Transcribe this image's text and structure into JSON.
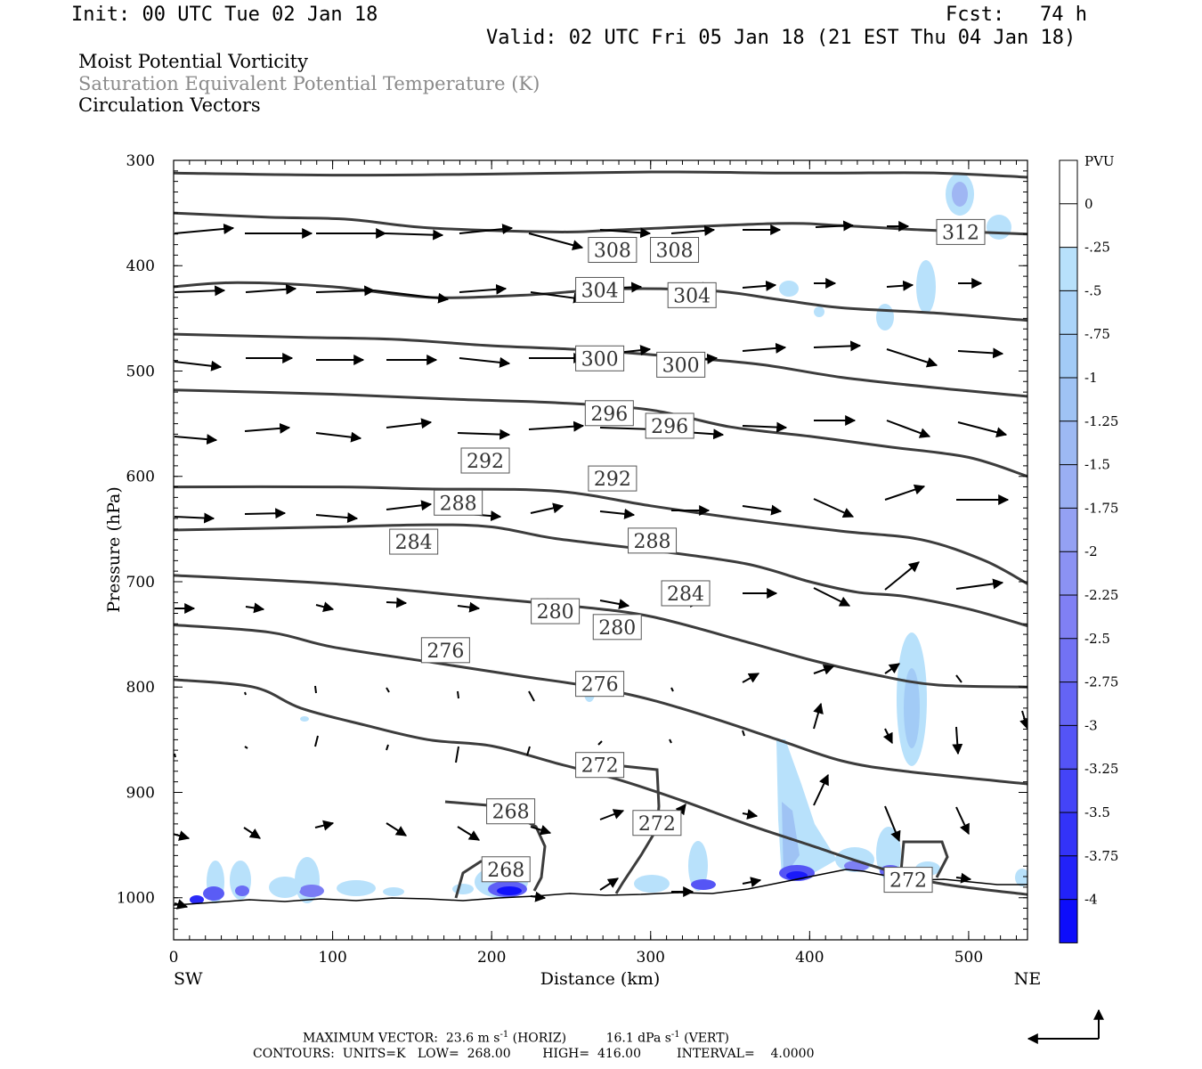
{
  "header": {
    "init": "Init: 00 UTC Tue 02 Jan 18",
    "fcst": "Fcst:   74 h",
    "valid": "Valid: 02 UTC Fri 05 Jan 18 (21 EST Thu 04 Jan 18)"
  },
  "fields": [
    "Moist Potential Vorticity",
    "Saturation Equivalent Potential Temperature (K)",
    "Circulation Vectors"
  ],
  "footer": {
    "max_vector_label": "MAXIMUM VECTOR:",
    "horiz_value": "23.6 m s",
    "horiz_tail": " (HORIZ)",
    "vert_value": "16.1 dPa s",
    "vert_tail": " (VERT)",
    "exp": "-1",
    "contours": "CONTOURS:  UNITS=K   LOW=  268.00        HIGH=  416.00         INTERVAL=    4.0000"
  },
  "chart_data": {
    "type": "contour",
    "x_axis": {
      "label": "Distance (km)",
      "range": [
        0,
        537
      ],
      "ticks": [
        0,
        100,
        200,
        300,
        400,
        500
      ],
      "left_label": "SW",
      "right_label": "NE"
    },
    "y_axis": {
      "label": "Pressure (hPa)",
      "range": [
        300,
        1040
      ],
      "ticks": [
        300,
        400,
        500,
        600,
        700,
        800,
        900,
        1000
      ],
      "reversed": true
    },
    "colorbar": {
      "title": "PVU",
      "ticks": [
        "0",
        "-.25",
        "-.5",
        "-.75",
        "-1",
        "-1.25",
        "-1.5",
        "-1.75",
        "-2",
        "-2.25",
        "-2.5",
        "-2.75",
        "-3",
        "-3.25",
        "-3.5",
        "-3.75",
        "-4"
      ],
      "colors": [
        "#ffffff",
        "#ffffff",
        "#b8e1fb",
        "#abd4f9",
        "#a2cbf6",
        "#9fc3f4",
        "#9db9f3",
        "#9aaff3",
        "#94a1f3",
        "#8b92f3",
        "#8080f4",
        "#7272f4",
        "#6464f5",
        "#5454f6",
        "#4444f7",
        "#3333f8",
        "#2222f9",
        "#0d0dfb"
      ]
    },
    "contours": [
      {
        "label": "312",
        "points": [
          [
            0,
            312
          ],
          [
            100,
            314
          ],
          [
            200,
            313
          ],
          [
            300,
            311
          ],
          [
            380,
            312
          ],
          [
            420,
            312
          ],
          [
            480,
            312
          ],
          [
            537,
            316
          ]
        ]
      },
      {
        "label": "308",
        "points": [
          [
            0,
            350
          ],
          [
            60,
            354
          ],
          [
            110,
            356
          ],
          [
            160,
            364
          ],
          [
            240,
            368
          ],
          [
            280,
            366
          ],
          [
            380,
            360
          ],
          [
            420,
            362
          ],
          [
            470,
            366
          ],
          [
            537,
            370
          ]
        ]
      },
      {
        "label": "304",
        "points": [
          [
            0,
            420
          ],
          [
            40,
            416
          ],
          [
            100,
            420
          ],
          [
            160,
            430
          ],
          [
            220,
            428
          ],
          [
            280,
            422
          ],
          [
            340,
            424
          ],
          [
            380,
            432
          ],
          [
            420,
            440
          ],
          [
            480,
            445
          ],
          [
            537,
            452
          ]
        ]
      },
      {
        "label": "300",
        "points": [
          [
            0,
            465
          ],
          [
            80,
            468
          ],
          [
            140,
            470
          ],
          [
            200,
            476
          ],
          [
            260,
            480
          ],
          [
            320,
            487
          ],
          [
            370,
            494
          ],
          [
            420,
            506
          ],
          [
            480,
            516
          ],
          [
            537,
            524
          ]
        ]
      },
      {
        "label": "296",
        "points": [
          [
            0,
            518
          ],
          [
            100,
            522
          ],
          [
            180,
            527
          ],
          [
            240,
            530
          ],
          [
            300,
            537
          ],
          [
            350,
            553
          ],
          [
            400,
            562
          ],
          [
            450,
            572
          ],
          [
            500,
            582
          ],
          [
            537,
            600
          ]
        ]
      },
      {
        "label": "292",
        "points": [
          [
            0,
            610
          ],
          [
            100,
            610
          ],
          [
            160,
            612
          ],
          [
            240,
            614
          ],
          [
            300,
            628
          ],
          [
            360,
            641
          ],
          [
            420,
            652
          ],
          [
            470,
            660
          ],
          [
            510,
            680
          ],
          [
            537,
            702
          ]
        ]
      },
      {
        "label": "288",
        "points": [
          [
            0,
            651
          ],
          [
            100,
            648
          ],
          [
            160,
            646
          ],
          [
            200,
            648
          ],
          [
            240,
            659
          ],
          [
            300,
            670
          ],
          [
            360,
            683
          ],
          [
            400,
            700
          ],
          [
            430,
            710
          ],
          [
            460,
            714
          ],
          [
            500,
            726
          ],
          [
            537,
            742
          ]
        ]
      },
      {
        "label": "284",
        "points": [
          [
            0,
            694
          ],
          [
            100,
            702
          ],
          [
            200,
            716
          ],
          [
            250,
            723
          ],
          [
            300,
            733
          ],
          [
            360,
            757
          ],
          [
            400,
            774
          ],
          [
            440,
            788
          ],
          [
            480,
            798
          ],
          [
            537,
            800
          ]
        ]
      },
      {
        "label": "280",
        "points": [
          [
            0,
            741
          ],
          [
            60,
            748
          ],
          [
            100,
            762
          ],
          [
            160,
            776
          ],
          [
            220,
            790
          ],
          [
            260,
            799
          ],
          [
            300,
            812
          ],
          [
            340,
            830
          ],
          [
            380,
            850
          ],
          [
            420,
            870
          ],
          [
            460,
            880
          ],
          [
            537,
            892
          ]
        ]
      },
      {
        "label": "276",
        "points": [
          [
            0,
            793
          ],
          [
            50,
            800
          ],
          [
            80,
            820
          ],
          [
            120,
            836
          ],
          [
            160,
            850
          ],
          [
            200,
            856
          ],
          [
            240,
            872
          ],
          [
            280,
            888
          ],
          [
            320,
            908
          ],
          [
            360,
            930
          ],
          [
            400,
            950
          ],
          [
            440,
            970
          ],
          [
            480,
            986
          ],
          [
            537,
            997
          ]
        ]
      }
    ],
    "contour_labels": [
      {
        "text": "312",
        "x": 495,
        "y": 368
      },
      {
        "text": "308",
        "x": 276,
        "y": 385
      },
      {
        "text": "308",
        "x": 315,
        "y": 385
      },
      {
        "text": "304",
        "x": 268,
        "y": 423
      },
      {
        "text": "304",
        "x": 326,
        "y": 428
      },
      {
        "text": "300",
        "x": 268,
        "y": 488
      },
      {
        "text": "300",
        "x": 319,
        "y": 494
      },
      {
        "text": "296",
        "x": 274,
        "y": 540
      },
      {
        "text": "296",
        "x": 312,
        "y": 552
      },
      {
        "text": "292",
        "x": 196,
        "y": 585
      },
      {
        "text": "292",
        "x": 276,
        "y": 602
      },
      {
        "text": "288",
        "x": 179,
        "y": 625
      },
      {
        "text": "288",
        "x": 301,
        "y": 661
      },
      {
        "text": "284",
        "x": 151,
        "y": 662
      },
      {
        "text": "284",
        "x": 322,
        "y": 711
      },
      {
        "text": "280",
        "x": 240,
        "y": 728
      },
      {
        "text": "280",
        "x": 279,
        "y": 743
      },
      {
        "text": "276",
        "x": 171,
        "y": 765
      },
      {
        "text": "276",
        "x": 268,
        "y": 797
      },
      {
        "text": "272",
        "x": 268,
        "y": 874
      },
      {
        "text": "272",
        "x": 304,
        "y": 929
      },
      {
        "text": "272",
        "x": 462,
        "y": 983
      },
      {
        "text": "268",
        "x": 212,
        "y": 918
      },
      {
        "text": "268",
        "x": 209,
        "y": 973
      }
    ]
  }
}
